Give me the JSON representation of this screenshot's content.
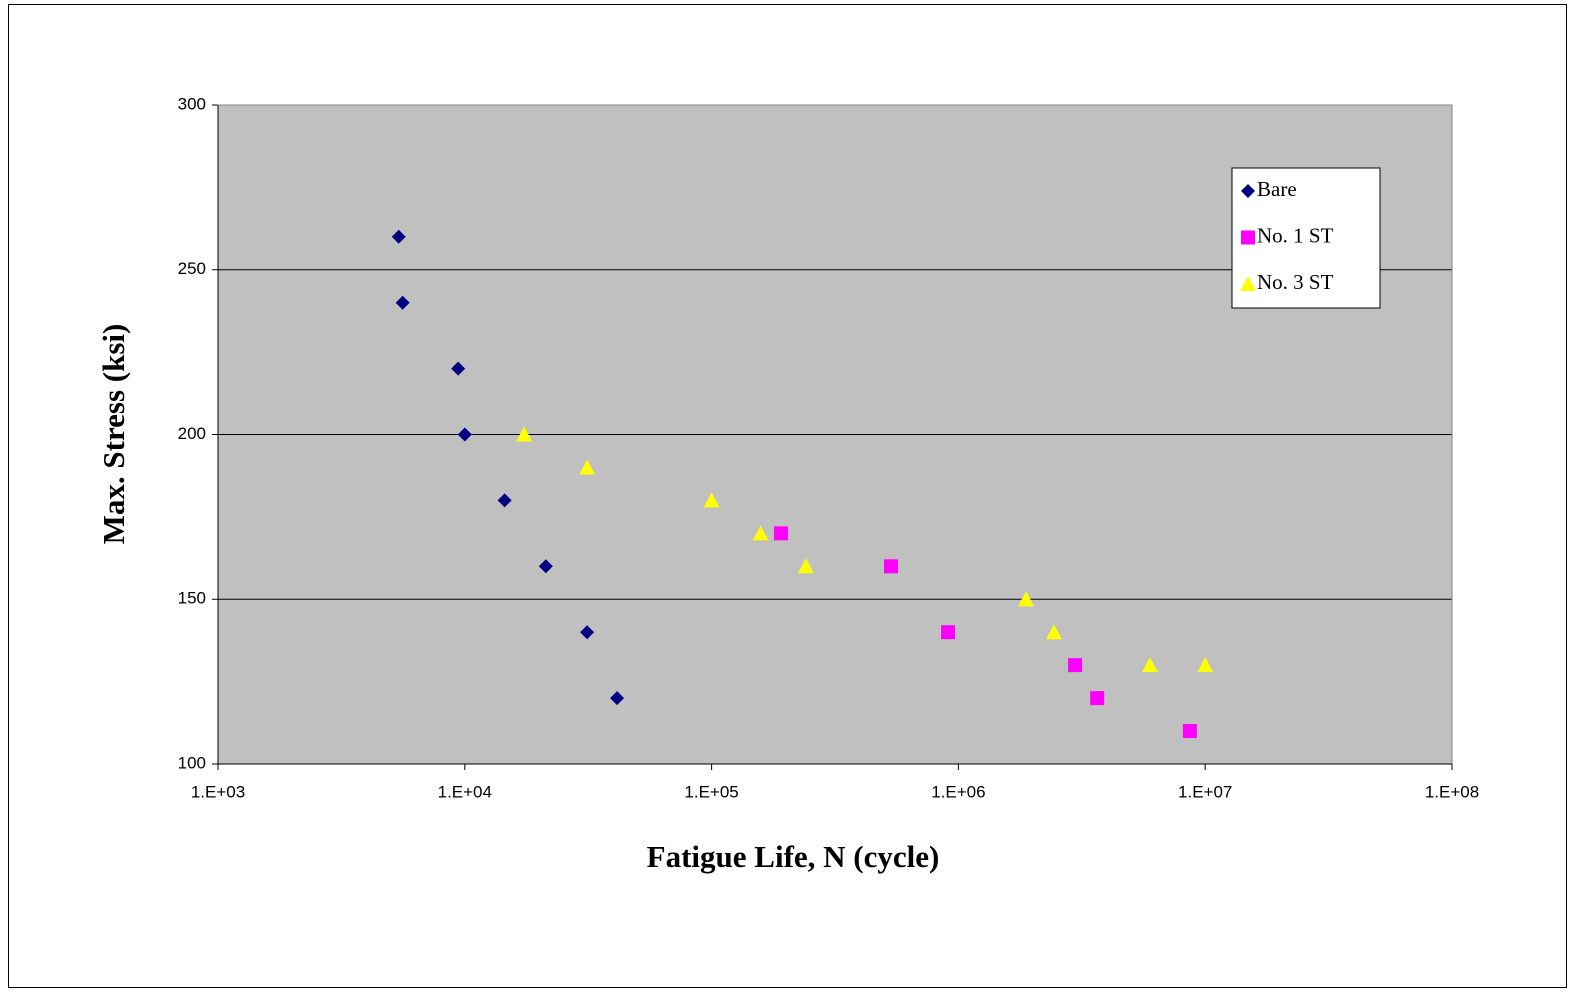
{
  "chart_data": {
    "type": "scatter",
    "x_label": "Fatigue Life, N (cycle)",
    "y_label": "Max. Stress (ksi)",
    "log_x": true,
    "grid": true,
    "legend": "upper right",
    "xlim": [
      1000,
      100000000
    ],
    "xticks": [
      {
        "value": 1000,
        "label": "1.E+03"
      },
      {
        "value": 10000,
        "label": "1.E+04"
      },
      {
        "value": 100000,
        "label": "1.E+05"
      },
      {
        "value": 1000000,
        "label": "1.E+06"
      },
      {
        "value": 10000000,
        "label": "1.E+07"
      },
      {
        "value": 100000000,
        "label": "1.E+08"
      }
    ],
    "ylim": [
      100,
      300
    ],
    "yticks": [
      100,
      150,
      200,
      250,
      300
    ],
    "series": [
      {
        "name": "Bare",
        "color": "#000080",
        "marker": "diamond",
        "x": [
          5400,
          5600,
          9400,
          10000,
          14500,
          21300,
          31300,
          41400
        ],
        "values": [
          260,
          240,
          220,
          200,
          180,
          160,
          140,
          120
        ]
      },
      {
        "name": "No. 1 ST",
        "color": "#FF00FF",
        "marker": "square",
        "x": [
          191000,
          533000,
          908000,
          2970000,
          3650000,
          8670000
        ],
        "values": [
          170,
          160,
          140,
          130,
          120,
          110
        ]
      },
      {
        "name": "No. 3 ST",
        "color": "#FFFF00",
        "marker": "triangle",
        "x": [
          17400,
          31300,
          100000,
          158000,
          241000,
          1880000,
          2440000,
          5970000,
          10000000
        ],
        "values": [
          200,
          190,
          180,
          170,
          160,
          150,
          140,
          130,
          130
        ]
      }
    ]
  }
}
